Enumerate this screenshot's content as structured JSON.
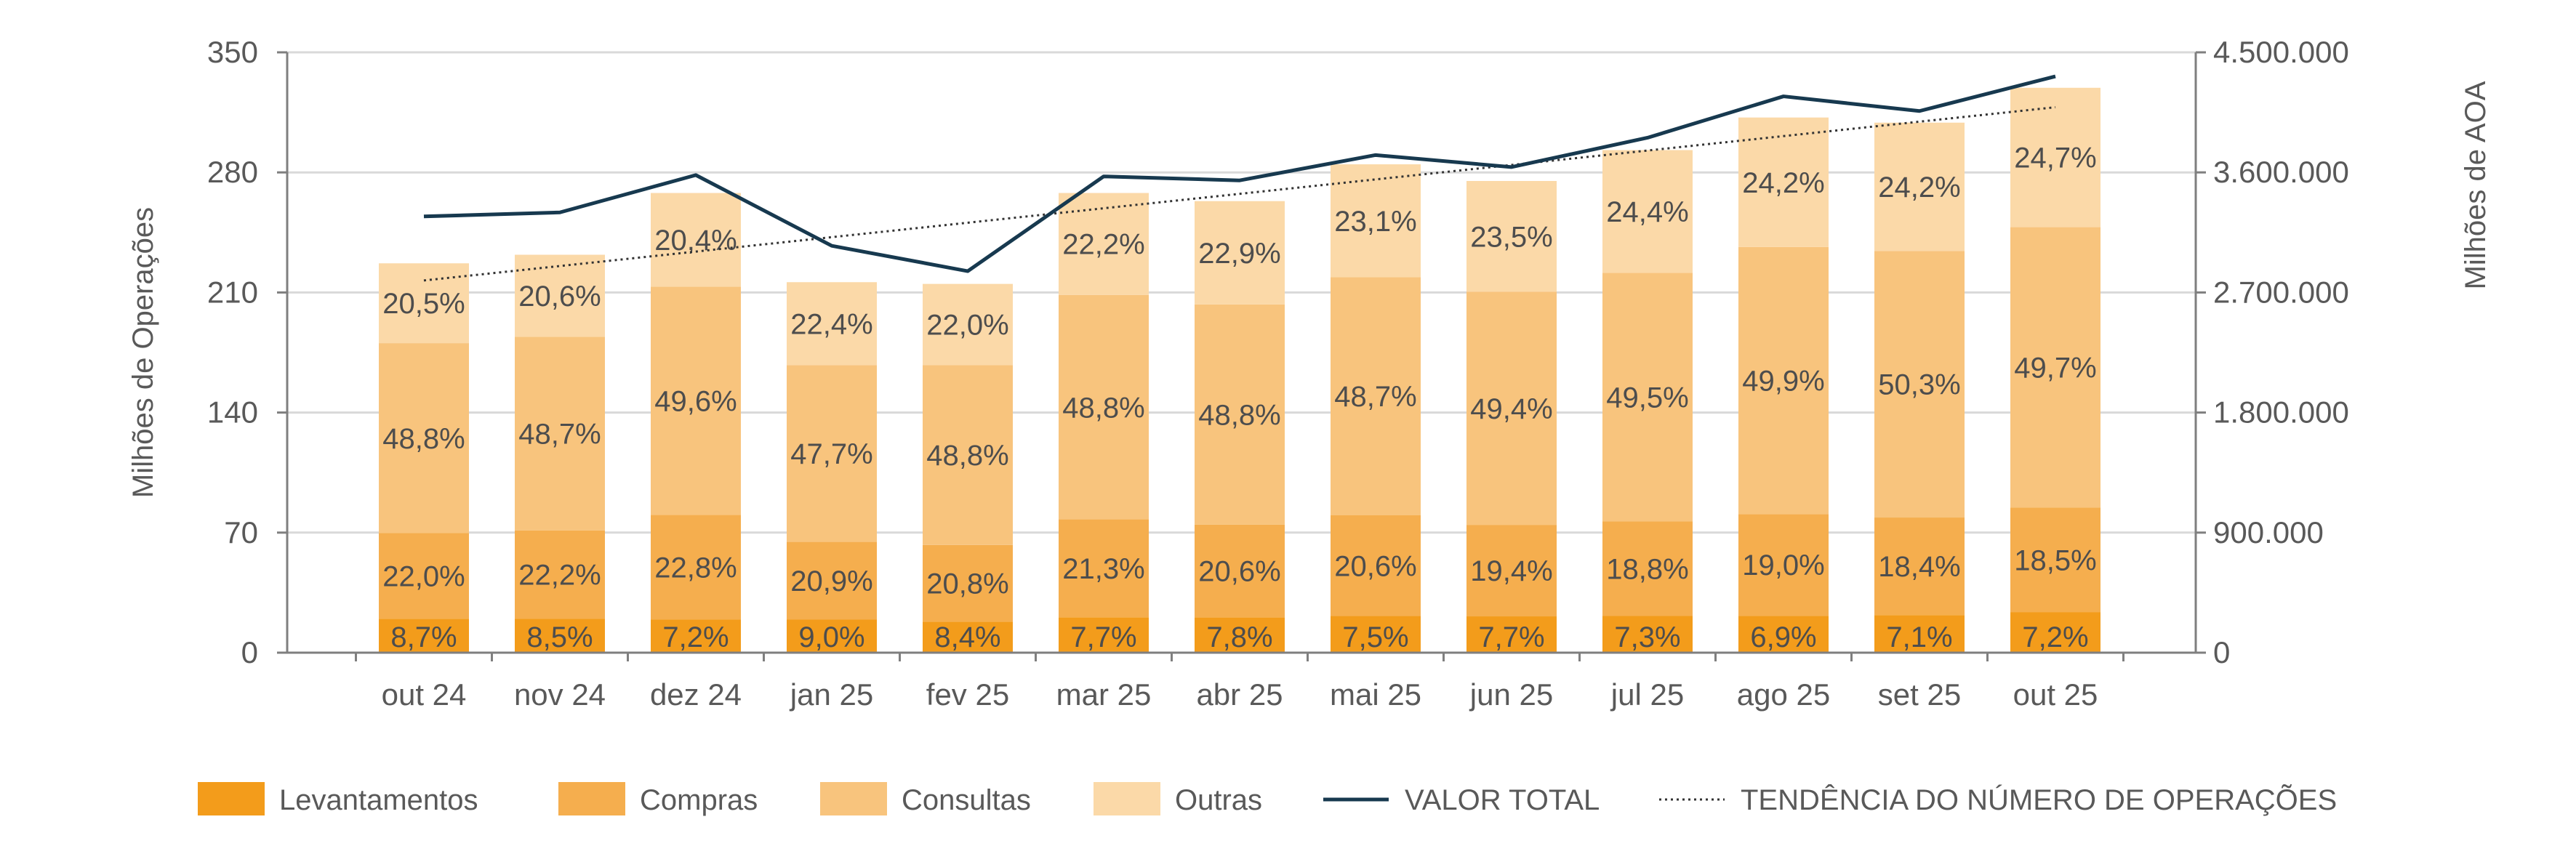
{
  "chart_data": {
    "type": "bar",
    "stacked": true,
    "categories": [
      "out 24",
      "nov 24",
      "dez 24",
      "jan 25",
      "fev 25",
      "mar 25",
      "abr 25",
      "mai 25",
      "jun 25",
      "jul 25",
      "ago 25",
      "set 25",
      "out 25"
    ],
    "totals": [
      227,
      232,
      268,
      216,
      215,
      268,
      263,
      285,
      275,
      293,
      312,
      309,
      329
    ],
    "series": [
      {
        "name": "Levantamentos",
        "color": "#f39c1b",
        "shares": [
          8.7,
          8.5,
          7.2,
          9.0,
          8.4,
          7.7,
          7.8,
          7.5,
          7.7,
          7.3,
          6.9,
          7.1,
          7.2
        ],
        "labels": [
          "8,7%",
          "8,5%",
          "7,2%",
          "9,0%",
          "8,4%",
          "7,7%",
          "7,8%",
          "7,5%",
          "7,7%",
          "7,3%",
          "6,9%",
          "7,1%",
          "7,2%"
        ]
      },
      {
        "name": "Compras",
        "color": "#f5ae4e",
        "shares": [
          22.0,
          22.2,
          22.8,
          20.9,
          20.8,
          21.3,
          20.6,
          20.6,
          19.4,
          18.8,
          19.0,
          18.4,
          18.5
        ],
        "labels": [
          "22,0%",
          "22,2%",
          "22,8%",
          "20,9%",
          "20,8%",
          "21,3%",
          "20,6%",
          "20,6%",
          "19,4%",
          "18,8%",
          "19,0%",
          "18,4%",
          "18,5%"
        ]
      },
      {
        "name": "Consultas",
        "color": "#f8c47d",
        "shares": [
          48.8,
          48.7,
          49.6,
          47.7,
          48.8,
          48.8,
          48.8,
          48.7,
          49.4,
          49.5,
          49.9,
          50.3,
          49.7
        ],
        "labels": [
          "48,8%",
          "48,7%",
          "49,6%",
          "47,7%",
          "48,8%",
          "48,8%",
          "48,8%",
          "48,7%",
          "49,4%",
          "49,5%",
          "49,9%",
          "50,3%",
          "49,7%"
        ]
      },
      {
        "name": "Outras",
        "color": "#fbd9a8",
        "shares": [
          20.5,
          20.6,
          20.4,
          22.4,
          22.0,
          22.2,
          22.9,
          23.1,
          23.5,
          24.4,
          24.2,
          24.2,
          24.7
        ],
        "labels": [
          "20,5%",
          "20,6%",
          "20,4%",
          "22,4%",
          "22,0%",
          "22,2%",
          "22,9%",
          "23,1%",
          "23,5%",
          "24,4%",
          "24,2%",
          "24,2%",
          "24,7%"
        ]
      }
    ],
    "line_series": {
      "name": "VALOR TOTAL",
      "color": "#17394f",
      "axis": "right",
      "values": [
        3270000,
        3300000,
        3580000,
        3050000,
        2860000,
        3570000,
        3540000,
        3730000,
        3640000,
        3860000,
        4170000,
        4060000,
        4320000
      ]
    },
    "trend_series": {
      "name": "TENDÊNCIA DO NÚMERO DE OPERAÇÕES",
      "color": "#333333",
      "axis": "left",
      "start": 217,
      "end": 318
    },
    "y_left": {
      "label": "Milhões de Operações",
      "min": 0,
      "max": 350,
      "ticks": [
        0,
        70,
        140,
        210,
        280,
        350
      ],
      "tick_labels": [
        "0",
        "70",
        "140",
        "210",
        "280",
        "350"
      ]
    },
    "y_right": {
      "label": "Milhões de AOA",
      "min": 0,
      "max": 4500000,
      "ticks": [
        0,
        900000,
        1800000,
        2700000,
        3600000,
        4500000
      ],
      "tick_labels": [
        "0",
        "900.000",
        "1.800.000",
        "2.700.000",
        "3.600.000",
        "4.500.000"
      ]
    },
    "grid": true,
    "legend": {
      "position": "bottom",
      "items": [
        "Levantamentos",
        "Compras",
        "Consultas",
        "Outras",
        "VALOR TOTAL",
        "TENDÊNCIA DO NÚMERO DE OPERAÇÕES"
      ]
    }
  }
}
